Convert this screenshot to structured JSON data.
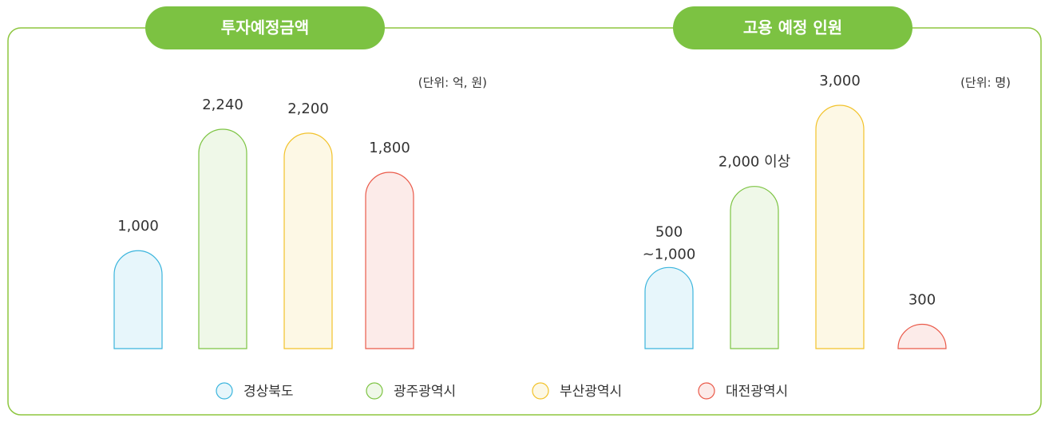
{
  "chart_data": [
    {
      "type": "bar",
      "title": "투자예정금액",
      "subtitle": "(단위: 억, 원)",
      "categories": [
        "경상북도",
        "광주광역시",
        "부산광역시",
        "대전광역시"
      ],
      "values": [
        1000,
        2240,
        2200,
        1800
      ],
      "value_labels": [
        "1,000",
        "2,240",
        "2,200",
        "1,800"
      ],
      "colors": [
        "#3bb5dd",
        "#7dc443",
        "#f2c22a",
        "#ea5a4a"
      ]
    },
    {
      "type": "bar",
      "title": "고용 예정 인원",
      "subtitle": "(단위: 명)",
      "categories": [
        "경상북도",
        "광주광역시",
        "부산광역시",
        "대전광역시"
      ],
      "values": [
        1000,
        2000,
        3000,
        300
      ],
      "value_labels": [
        "500\n~1,000",
        "2,000 이상",
        "3,000",
        "300"
      ],
      "colors": [
        "#3bb5dd",
        "#7dc443",
        "#f2c22a",
        "#ea5a4a"
      ]
    }
  ]
}
